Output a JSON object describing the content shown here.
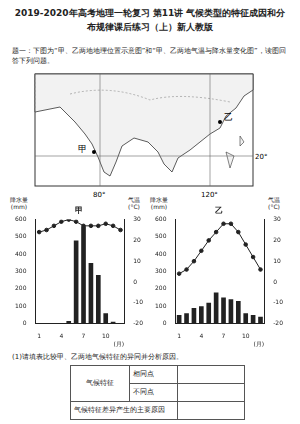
{
  "header": {
    "title": "2019-2020年高考地理一轮复习 第11讲 气候类型的特征成因和分布规律课后练习（上）新人教版"
  },
  "intro": "题一：下图为“甲、乙两地地理位置示意图”和“甲、乙两地气温与降水量变化图”，读图回答下列问题。",
  "map": {
    "places": [
      "甲",
      "乙"
    ],
    "latitude": "20°",
    "longitudes": [
      "80°",
      "120°"
    ]
  },
  "chart_data": [
    {
      "type": "bar",
      "title": "甲",
      "ylabel": "降水量(mm)",
      "y2label": "气温(°C)",
      "xlabel": "(月)",
      "categories": [
        "1",
        null,
        null,
        "4",
        null,
        null,
        "7",
        null,
        null,
        "10",
        null,
        null
      ],
      "series": [
        {
          "type": "bar",
          "color": "#222222",
          "values": [
            2,
            1,
            1,
            2,
            15,
            480,
            560,
            350,
            280,
            60,
            10,
            3
          ]
        },
        {
          "type": "line",
          "axis": "y2",
          "color": "#222222",
          "marker": "circle",
          "values": [
            24,
            25,
            27,
            29,
            30,
            29,
            27,
            27,
            27,
            28,
            27,
            25
          ]
        }
      ],
      "ylim": [
        0,
        600
      ],
      "yticks": [
        0,
        100,
        200,
        300,
        400,
        500,
        600
      ],
      "y2lim": [
        -20,
        30
      ],
      "y2ticks": [
        -20,
        -10,
        0,
        10,
        20,
        30
      ],
      "grid": false,
      "legend": false
    },
    {
      "type": "bar",
      "title": "乙",
      "ylabel": "降水量(mm)",
      "y2label": "气温(°C)",
      "xlabel": "(月)",
      "categories": [
        "1",
        null,
        null,
        "4",
        null,
        null,
        "7",
        null,
        null,
        "10",
        null,
        null
      ],
      "series": [
        {
          "type": "bar",
          "color": "#222222",
          "values": [
            50,
            60,
            90,
            100,
            120,
            180,
            150,
            140,
            130,
            60,
            50,
            40
          ]
        },
        {
          "type": "line",
          "axis": "y2",
          "color": "#222222",
          "marker": "circle",
          "values": [
            4,
            6,
            10,
            15,
            20,
            24,
            28,
            28,
            24,
            18,
            12,
            6
          ]
        }
      ],
      "ylim": [
        0,
        600
      ],
      "yticks": [
        0,
        100,
        200,
        300,
        400,
        500,
        600
      ],
      "y2lim": [
        -20,
        30
      ],
      "y2ticks": [
        -20,
        -10,
        0,
        10,
        20,
        30
      ],
      "grid": false,
      "legend": false
    }
  ],
  "question": "(1)请填表比较甲、乙两地气候特征的异同并分析原因。",
  "table": {
    "rows": [
      {
        "label": "气候特征",
        "sub": [
          "相同点",
          "不同点"
        ]
      },
      {
        "label": "气候特征差异产生的主要原因"
      }
    ]
  }
}
